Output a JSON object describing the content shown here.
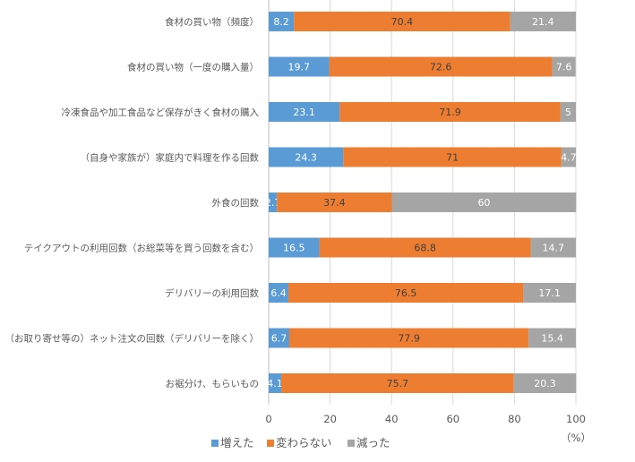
{
  "chart_data": {
    "type": "bar",
    "orientation": "horizontal",
    "stacked": true,
    "categories": [
      "食材の買い物（頻度）",
      "食材の買い物（一度の購入量）",
      "冷凍食品や加工食品など保存がきく食材の購入",
      "（自身や家族が）家庭内で料理を作る回数",
      "外食の回数",
      "テイクアウトの利用回数（お総菜等を買う回数を含む）",
      "デリバリーの利用回数",
      "（お取り寄せ等の）ネット注文の回数（デリバリーを除く）",
      "お裾分け、もらいもの"
    ],
    "series": [
      {
        "name": "増えた",
        "color": "#5B9BD5",
        "values": [
          8.2,
          19.7,
          23.1,
          24.3,
          2.7,
          16.5,
          6.4,
          6.7,
          4.1
        ]
      },
      {
        "name": "変わらない",
        "color": "#ED7D31",
        "values": [
          70.4,
          72.6,
          71.9,
          71,
          37.4,
          68.8,
          76.5,
          77.9,
          75.7
        ]
      },
      {
        "name": "減った",
        "color": "#A5A5A5",
        "values": [
          21.4,
          7.6,
          5,
          4.7,
          60,
          14.7,
          17.1,
          15.4,
          20.3
        ]
      }
    ],
    "xlim": [
      0,
      100
    ],
    "xticks": [
      "0",
      "20",
      "40",
      "60",
      "80",
      "100"
    ],
    "xunit": "（%）",
    "grid": true,
    "legend": "bottom-left"
  }
}
